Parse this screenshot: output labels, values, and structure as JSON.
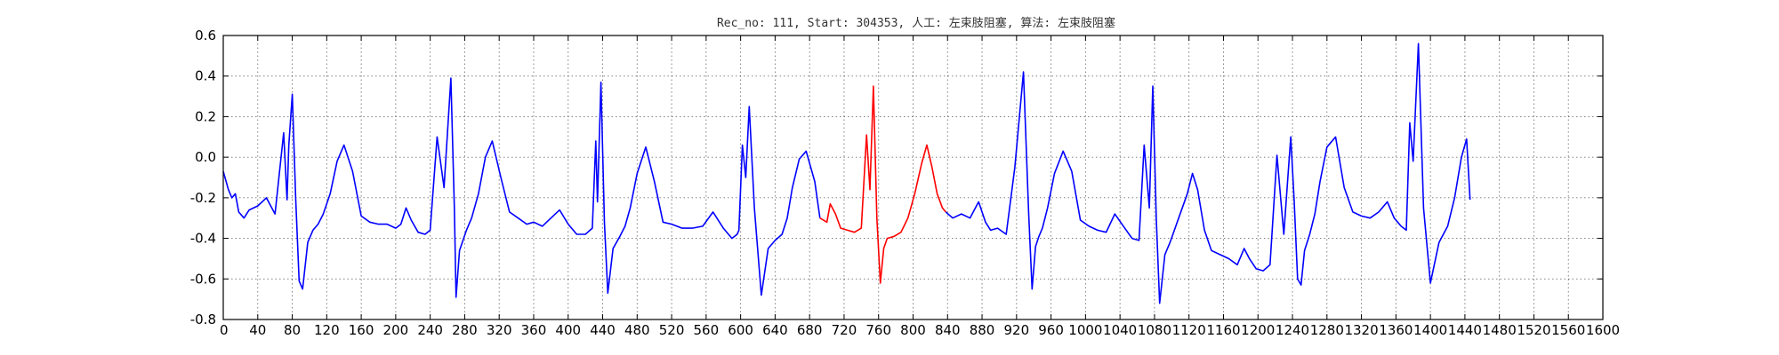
{
  "chart_data": {
    "type": "line",
    "title": "Rec_no: 111, Start: 304353, 人工: 左束肢阻塞, 算法: 左束肢阻塞",
    "xlabel": "",
    "ylabel": "",
    "xlim": [
      0,
      1600
    ],
    "ylim": [
      -0.8,
      0.6
    ],
    "grid": true,
    "y_ticks": [
      "-0.8",
      "-0.6",
      "-0.4",
      "-0.2",
      "0.0",
      "0.2",
      "0.4",
      "0.6"
    ],
    "x_ticks": [
      "0",
      "40",
      "80",
      "120",
      "160",
      "200",
      "240",
      "280",
      "320",
      "360",
      "400",
      "440",
      "480",
      "520",
      "560",
      "600",
      "640",
      "680",
      "720",
      "760",
      "800",
      "840",
      "880",
      "920",
      "960",
      "1000",
      "1040",
      "1080",
      "1120",
      "1160",
      "1200",
      "1240",
      "1280",
      "1320",
      "1360",
      "1400",
      "1440",
      "1480",
      "1520",
      "1560",
      "1600"
    ],
    "series": [
      {
        "color": "#0000ff",
        "x": [
          0,
          6,
          10,
          14,
          18,
          24,
          30,
          40,
          50,
          60,
          70,
          74,
          76,
          80,
          84,
          88,
          92,
          98,
          104,
          110,
          116,
          124,
          132,
          140,
          150,
          160,
          170,
          180,
          190,
          200,
          206,
          212,
          218,
          226,
          234,
          240,
          248,
          256,
          264,
          268,
          270,
          274,
          278,
          282,
          288,
          296,
          304,
          312,
          322,
          332,
          342,
          352,
          360,
          370,
          380,
          390,
          400,
          410,
          420,
          428,
          432,
          434,
          438,
          442,
          446,
          452,
          460,
          466,
          472,
          480,
          490,
          500,
          510,
          520,
          532,
          544,
          556,
          568,
          580,
          590,
          596,
          598,
          602,
          606,
          610,
          616,
          624,
          632,
          640,
          648,
          654,
          660,
          668,
          676,
          686,
          692
        ],
        "y": [
          -0.07,
          -0.16,
          -0.2,
          -0.18,
          -0.27,
          -0.3,
          -0.26,
          -0.24,
          -0.2,
          -0.28,
          0.12,
          -0.21,
          0.06,
          0.31,
          -0.2,
          -0.61,
          -0.65,
          -0.42,
          -0.36,
          -0.33,
          -0.28,
          -0.18,
          -0.02,
          0.06,
          -0.07,
          -0.29,
          -0.32,
          -0.33,
          -0.33,
          -0.35,
          -0.33,
          -0.25,
          -0.31,
          -0.37,
          -0.38,
          -0.36,
          0.1,
          -0.15,
          0.39,
          -0.25,
          -0.69,
          -0.46,
          -0.41,
          -0.36,
          -0.3,
          -0.18,
          0.0,
          0.08,
          -0.1,
          -0.27,
          -0.3,
          -0.33,
          -0.32,
          -0.34,
          -0.3,
          -0.26,
          -0.33,
          -0.38,
          -0.38,
          -0.35,
          0.08,
          -0.22,
          0.37,
          -0.32,
          -0.67,
          -0.45,
          -0.39,
          -0.34,
          -0.25,
          -0.08,
          0.05,
          -0.12,
          -0.32,
          -0.33,
          -0.35,
          -0.35,
          -0.34,
          -0.27,
          -0.35,
          -0.4,
          -0.38,
          -0.36,
          0.06,
          -0.1,
          0.25,
          -0.25,
          -0.68,
          -0.45,
          -0.41,
          -0.38,
          -0.3,
          -0.15,
          -0.01,
          0.03,
          -0.12,
          -0.3
        ]
      },
      {
        "color": "#ff0000",
        "x": [
          692,
          700,
          704,
          710,
          716,
          724,
          732,
          740,
          746,
          750,
          754,
          758,
          762,
          766,
          770,
          778,
          786,
          794,
          802,
          810,
          816,
          822,
          828,
          834,
          838
        ],
        "y": [
          -0.3,
          -0.32,
          -0.23,
          -0.28,
          -0.35,
          -0.36,
          -0.37,
          -0.35,
          0.11,
          -0.16,
          0.35,
          -0.3,
          -0.62,
          -0.45,
          -0.4,
          -0.39,
          -0.37,
          -0.3,
          -0.18,
          -0.03,
          0.06,
          -0.05,
          -0.18,
          -0.25,
          -0.27
        ]
      },
      {
        "color": "#0000ff",
        "x": [
          838,
          846,
          856,
          866,
          876,
          884,
          890,
          898,
          908,
          918,
          928,
          934,
          938,
          942,
          946,
          950,
          956,
          964,
          974,
          984,
          994,
          1004,
          1014,
          1024,
          1034,
          1044,
          1054,
          1062,
          1068,
          1074,
          1078,
          1082,
          1086,
          1092,
          1098,
          1108,
          1118,
          1124,
          1130,
          1138,
          1146,
          1156,
          1166,
          1176,
          1184,
          1190,
          1198,
          1206,
          1214,
          1222,
          1230,
          1238,
          1242,
          1246,
          1250,
          1254,
          1260,
          1266,
          1272,
          1280,
          1290,
          1300,
          1310,
          1320,
          1330,
          1340,
          1350,
          1358,
          1366,
          1372,
          1376,
          1380,
          1386,
          1392,
          1400,
          1410,
          1420,
          1428,
          1436,
          1442,
          1446
        ],
        "y": [
          -0.27,
          -0.3,
          -0.28,
          -0.3,
          -0.22,
          -0.32,
          -0.36,
          -0.35,
          -0.38,
          -0.05,
          0.42,
          -0.27,
          -0.65,
          -0.44,
          -0.39,
          -0.35,
          -0.25,
          -0.08,
          0.03,
          -0.07,
          -0.31,
          -0.34,
          -0.36,
          -0.37,
          -0.28,
          -0.34,
          -0.4,
          -0.41,
          0.06,
          -0.25,
          0.35,
          -0.3,
          -0.72,
          -0.48,
          -0.42,
          -0.3,
          -0.18,
          -0.08,
          -0.16,
          -0.36,
          -0.46,
          -0.48,
          -0.5,
          -0.53,
          -0.45,
          -0.5,
          -0.55,
          -0.56,
          -0.53,
          0.01,
          -0.38,
          0.1,
          -0.22,
          -0.6,
          -0.63,
          -0.46,
          -0.38,
          -0.28,
          -0.12,
          0.05,
          0.1,
          -0.15,
          -0.27,
          -0.29,
          -0.3,
          -0.27,
          -0.22,
          -0.3,
          -0.34,
          -0.36,
          0.17,
          -0.02,
          0.56,
          -0.25,
          -0.62,
          -0.42,
          -0.34,
          -0.2,
          0.0,
          0.09,
          -0.21
        ]
      }
    ]
  }
}
